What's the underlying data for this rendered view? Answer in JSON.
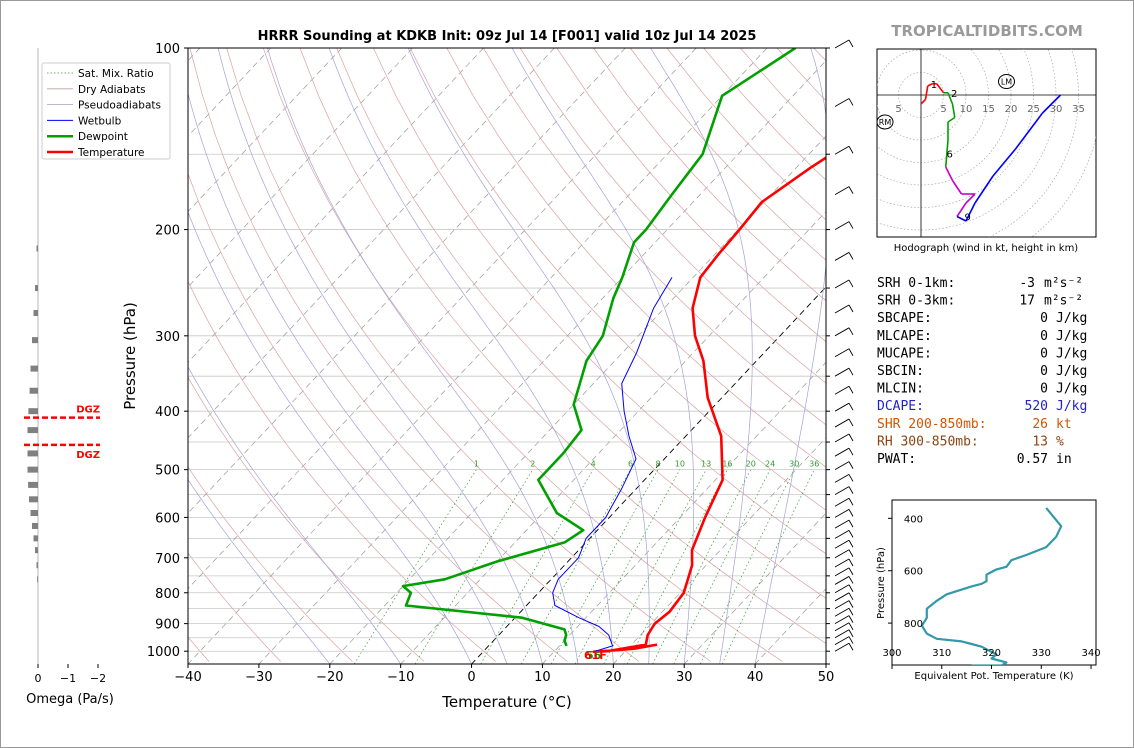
{
  "title": "HRRR Sounding at KDKB Init: 09z Jul 14 [F001] valid 10z Jul 14 2025",
  "watermark": "TROPICALTIDBITS.COM",
  "colors": {
    "temperature": "#ff0000",
    "dewpoint": "#00a000",
    "wetbulb": "#0000ff",
    "dry_adiabat": "#d9a3a3",
    "pseudo_adiabat": "#a3a3d9",
    "mixing_ratio": "#2e9e2e",
    "isotherm": "#000000",
    "dcape": "#2222cc",
    "shear": "#d45500",
    "rh": "#8b4513",
    "theta_e": "#3399aa"
  },
  "chart_data": [
    {
      "type": "line",
      "name": "skewt",
      "title": "HRRR Sounding at KDKB Init: 09z Jul 14 [F001] valid 10z Jul 14 2025",
      "xlabel": "Temperature (°C)",
      "ylabel": "Pressure (hPa)",
      "xlim": [
        -40,
        50
      ],
      "ylim": [
        1050,
        100
      ],
      "y_scale": "log",
      "x_ticks": [
        -40,
        -30,
        -20,
        -10,
        0,
        10,
        20,
        30,
        40,
        50
      ],
      "x_tick_labels": [
        "−40",
        "−30",
        "−20",
        "−10",
        "0",
        "10",
        "20",
        "30",
        "40",
        "50"
      ],
      "y_ticks": [
        100,
        200,
        300,
        400,
        500,
        600,
        700,
        800,
        900,
        1000
      ],
      "grid": true,
      "legend": {
        "placement": "top-left",
        "entries": [
          "Sat. Mix. Ratio",
          "Dry Adiabats",
          "Pseudoadiabats",
          "Wetbulb",
          "Dewpoint",
          "Temperature"
        ]
      },
      "mixing_ratio_labels": [
        "1",
        "2",
        "4",
        "6",
        "8",
        "10",
        "13",
        "16",
        "20",
        "24",
        "30",
        "36"
      ],
      "surface_label_dewpoint": "56",
      "surface_label_temperature": "61F",
      "series": [
        {
          "name": "Temperature",
          "points": [
            [
              23.6,
              975
            ],
            [
              21,
              990
            ],
            [
              19,
              995
            ],
            [
              15.6,
              1002
            ],
            [
              17.5,
              1000
            ],
            [
              22,
              975
            ],
            [
              21,
              940
            ],
            [
              20.5,
              900
            ],
            [
              21,
              860
            ],
            [
              20.5,
              800
            ],
            [
              18,
              720
            ],
            [
              16,
              680
            ],
            [
              13.5,
              600
            ],
            [
              11,
              520
            ],
            [
              5,
              440
            ],
            [
              -2,
              380
            ],
            [
              -7.5,
              330
            ],
            [
              -12,
              300
            ],
            [
              -16,
              270
            ],
            [
              -19,
              240
            ],
            [
              -19.5,
              220
            ],
            [
              -19.8,
              200
            ],
            [
              -20.3,
              180
            ],
            [
              -18,
              158
            ],
            [
              -15,
              138
            ],
            [
              -10,
              117
            ],
            [
              -5,
              100
            ]
          ]
        },
        {
          "name": "Dewpoint",
          "points": [
            [
              11,
              980
            ],
            [
              10,
              960
            ],
            [
              9.5,
              940
            ],
            [
              8.5,
              920
            ],
            [
              1,
              880
            ],
            [
              -17,
              840
            ],
            [
              -18,
              800
            ],
            [
              -20,
              780
            ],
            [
              -15,
              760
            ],
            [
              -10,
              710
            ],
            [
              -3,
              660
            ],
            [
              -2,
              630
            ],
            [
              -8,
              590
            ],
            [
              -15,
              520
            ],
            [
              -15,
              470
            ],
            [
              -15.5,
              430
            ],
            [
              -20,
              390
            ],
            [
              -24,
              330
            ],
            [
              -25,
              300
            ],
            [
              -28.5,
              260
            ],
            [
              -30,
              240
            ],
            [
              -33,
              210
            ],
            [
              -33,
              200
            ],
            [
              -34,
              175
            ],
            [
              -35,
              150
            ],
            [
              -40,
              120
            ],
            [
              -36,
              100
            ]
          ]
        },
        {
          "name": "Wetbulb",
          "points": [
            [
              15.6,
              1002
            ],
            [
              17.5,
              980
            ],
            [
              15.5,
              940
            ],
            [
              13,
              910
            ],
            [
              9,
              880
            ],
            [
              4,
              840
            ],
            [
              2,
              800
            ],
            [
              1,
              760
            ],
            [
              1,
              700
            ],
            [
              -0.5,
              650
            ],
            [
              -0.5,
              600
            ],
            [
              -1,
              580
            ],
            [
              -2,
              540
            ],
            [
              -4,
              480
            ],
            [
              -8,
              440
            ],
            [
              -12,
              400
            ],
            [
              -16,
              360
            ],
            [
              -18,
              320
            ],
            [
              -21.5,
              270
            ],
            [
              -23,
              240
            ]
          ]
        }
      ]
    },
    {
      "type": "line",
      "name": "hodograph",
      "xlabel": "Hodograph (wind in kt, height in km)",
      "x_tick_labels": [
        "5",
        "5",
        "10",
        "15",
        "20",
        "25",
        "30",
        "35"
      ],
      "markers": [
        "RM",
        "LM"
      ],
      "height_labels": [
        "1",
        "2",
        "6",
        "9"
      ],
      "points": [
        [
          0,
          -2
        ],
        [
          1,
          -1
        ],
        [
          1.5,
          2
        ],
        [
          2.5,
          2.5
        ],
        [
          3.5,
          2.5
        ],
        [
          5,
          0.5
        ],
        [
          6,
          0.5
        ],
        [
          7,
          -2
        ],
        [
          7.5,
          -5
        ],
        [
          6,
          -6
        ],
        [
          6,
          -10
        ],
        [
          5.5,
          -16
        ],
        [
          7,
          -19
        ],
        [
          9,
          -22
        ],
        [
          12,
          -22
        ],
        [
          10,
          -24
        ],
        [
          8,
          -27
        ],
        [
          10,
          -28
        ],
        [
          12,
          -24
        ],
        [
          16,
          -18
        ],
        [
          21,
          -12
        ],
        [
          27,
          -4
        ],
        [
          31,
          0
        ]
      ]
    },
    {
      "type": "line",
      "name": "theta_e",
      "xlabel": "Equivalent Pot. Temperature (K)",
      "ylabel": "Pressure (hPa)",
      "xlim": [
        300,
        341
      ],
      "ylim": [
        960,
        330
      ],
      "x_ticks": [
        300,
        310,
        320,
        330,
        340
      ],
      "y_ticks": [
        400,
        600,
        800
      ],
      "x": [
        331,
        334,
        333,
        331,
        327,
        324,
        323,
        321,
        319,
        319,
        318,
        316,
        311,
        309,
        307,
        307,
        306,
        307,
        309,
        314,
        316,
        318,
        319,
        321,
        320,
        323,
        322,
        316
      ],
      "y": [
        360,
        430,
        470,
        510,
        540,
        560,
        585,
        595,
        615,
        640,
        650,
        660,
        690,
        715,
        745,
        780,
        810,
        840,
        860,
        870,
        880,
        890,
        900,
        920,
        935,
        950,
        962,
        962
      ]
    },
    {
      "type": "bar",
      "name": "omega",
      "xlabel": "Omega (Pa/s)",
      "x_tick_labels": [
        "0",
        "−1",
        "−2"
      ],
      "xlim": [
        0,
        -2
      ],
      "dgz_label": "DGZ",
      "x": [
        0.05,
        0.1,
        0.15,
        0.2,
        0.25,
        0.28,
        0.32,
        0.35,
        0.35,
        0.35,
        0.33,
        0.3,
        0.25,
        0.2,
        0.15,
        0.1,
        0.05,
        0.03
      ],
      "y": [
        215,
        250,
        275,
        305,
        340,
        370,
        400,
        430,
        470,
        500,
        530,
        560,
        590,
        620,
        650,
        680,
        720,
        760
      ]
    }
  ],
  "stats": [
    {
      "label": "SRH 0-1km:",
      "value": "-3",
      "unit": "m²s⁻²",
      "color": "#000000"
    },
    {
      "label": "SRH 0-3km:",
      "value": "17",
      "unit": "m²s⁻²",
      "color": "#000000"
    },
    {
      "label": "SBCAPE:",
      "value": "0",
      "unit": "J/kg",
      "color": "#000000"
    },
    {
      "label": "MLCAPE:",
      "value": "0",
      "unit": "J/kg",
      "color": "#000000"
    },
    {
      "label": "MUCAPE:",
      "value": "0",
      "unit": "J/kg",
      "color": "#000000"
    },
    {
      "label": "SBCIN:",
      "value": "0",
      "unit": "J/kg",
      "color": "#000000"
    },
    {
      "label": "MLCIN:",
      "value": "0",
      "unit": "J/kg",
      "color": "#000000"
    },
    {
      "label": "DCAPE:",
      "value": "520",
      "unit": "J/kg",
      "color": "#2222cc"
    },
    {
      "label": "SHR 200-850mb:",
      "value": "26",
      "unit": "kt",
      "color": "#d45500"
    },
    {
      "label": "RH 300-850mb:",
      "value": "13",
      "unit": "%",
      "color": "#8b4513"
    },
    {
      "label": "PWAT:",
      "value": "0.57",
      "unit": "in",
      "color": "#000000"
    }
  ]
}
